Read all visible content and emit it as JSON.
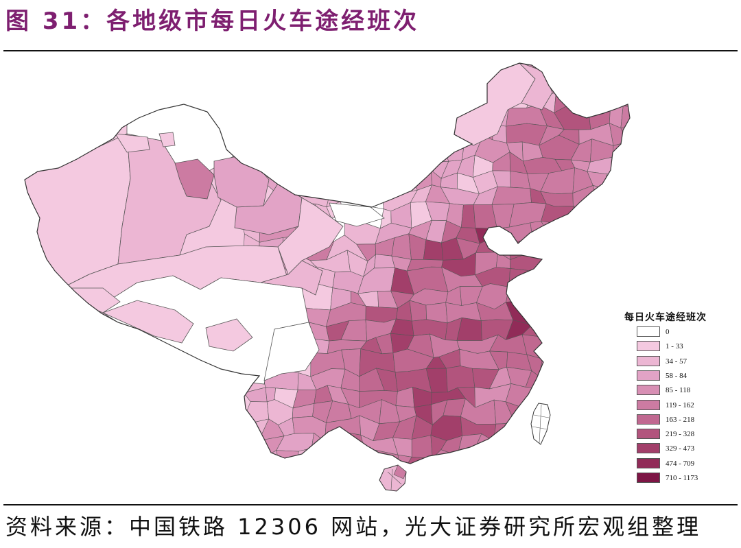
{
  "accent_color": "#7e1f70",
  "header": {
    "figure_label": "图 31：",
    "title": "各地级市每日火车途经班次"
  },
  "legend": {
    "title": "每日火车途经班次",
    "items": [
      {
        "label": "0",
        "color": "#ffffff"
      },
      {
        "label": "1 - 33",
        "color": "#f4c9e0"
      },
      {
        "label": "34 - 57",
        "color": "#ecb6d3"
      },
      {
        "label": "58 - 84",
        "color": "#e2a3c6"
      },
      {
        "label": "85 - 118",
        "color": "#d88fb4"
      },
      {
        "label": "119 - 162",
        "color": "#cc7ba2"
      },
      {
        "label": "163 - 218",
        "color": "#c06890"
      },
      {
        "label": "219 - 328",
        "color": "#b2547d"
      },
      {
        "label": "329 - 473",
        "color": "#a23f6a"
      },
      {
        "label": "474 - 709",
        "color": "#912b58"
      },
      {
        "label": "710 - 1173",
        "color": "#7d1545"
      }
    ]
  },
  "source": "资料来源：中国铁路 12306 网站，光大证券研究所宏观组整理"
}
